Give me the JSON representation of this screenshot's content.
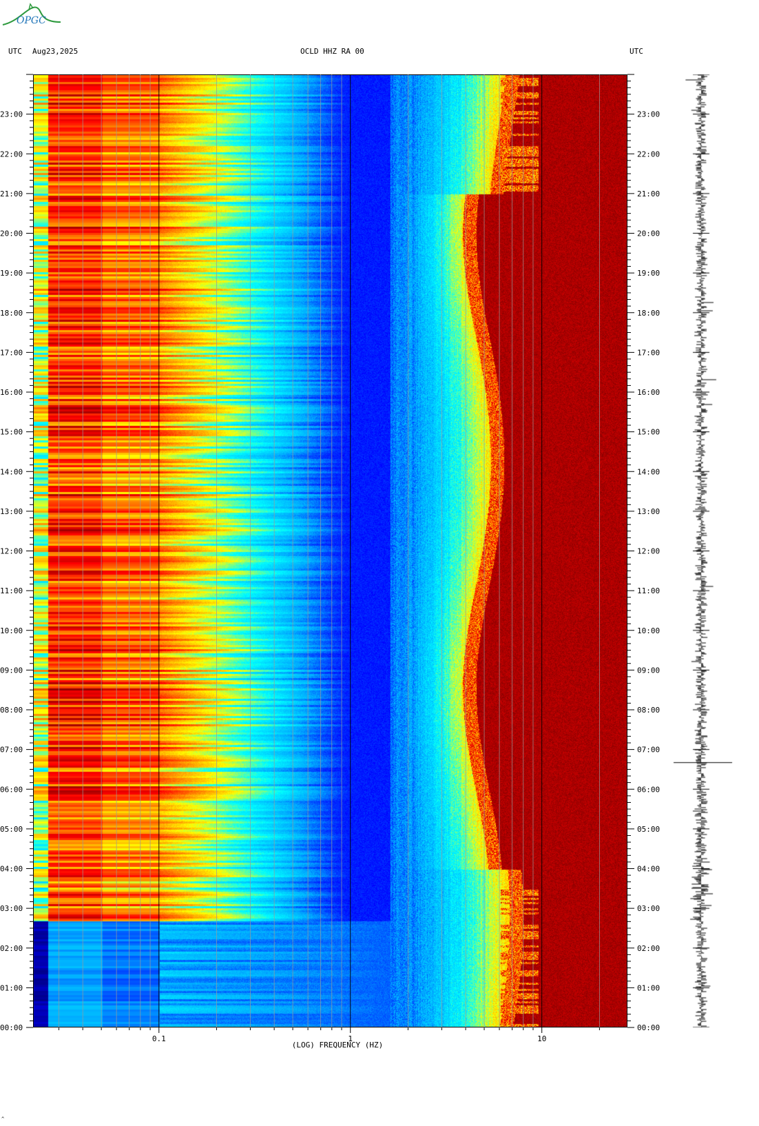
{
  "header": {
    "left_label": "UTC",
    "date": "Aug23,2025",
    "station": "OCLD HHZ RA 00",
    "right_label": "UTC"
  },
  "logo": {
    "text": "OPGC",
    "color": "#1f74b8"
  },
  "footer_mark": "^",
  "chart_data": {
    "type": "heatmap",
    "title": "OCLD HHZ RA 00",
    "xlabel": "(LOG) FREQUENCY (HZ)",
    "x_scale": "log",
    "xlim": [
      0.022,
      28
    ],
    "x_ticks": [
      {
        "value": 0.1,
        "label": "0.1"
      },
      {
        "value": 1,
        "label": "1"
      },
      {
        "value": 10,
        "label": "10"
      }
    ],
    "ylim_hours": [
      0,
      24
    ],
    "y_ticks": [
      "00:00",
      "01:00",
      "02:00",
      "03:00",
      "04:00",
      "05:00",
      "06:00",
      "07:00",
      "08:00",
      "09:00",
      "10:00",
      "11:00",
      "12:00",
      "13:00",
      "14:00",
      "15:00",
      "16:00",
      "17:00",
      "18:00",
      "19:00",
      "20:00",
      "21:00",
      "22:00",
      "23:00"
    ],
    "colormap": [
      "#00008b",
      "#0000ff",
      "#00aaff",
      "#00ffff",
      "#ffff00",
      "#ff8000",
      "#ff0000",
      "#8b0000"
    ],
    "side_panel": "seismogram trace"
  }
}
